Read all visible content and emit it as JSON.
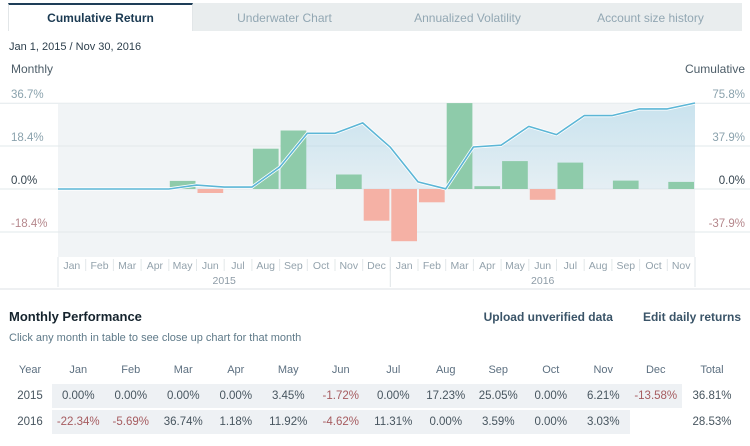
{
  "tabs": [
    {
      "label": "Cumulative Return",
      "active": true
    },
    {
      "label": "Underwater Chart",
      "active": false
    },
    {
      "label": "Annualized Volatility",
      "active": false
    },
    {
      "label": "Account size history",
      "active": false
    }
  ],
  "date_range": "Jan 1, 2015 / Nov 30, 2016",
  "chart_data": {
    "type": "bar+line",
    "x_groups": [
      {
        "year": "2015",
        "months": [
          "Jan",
          "Feb",
          "Mar",
          "Apr",
          "May",
          "Jun",
          "Jul",
          "Aug",
          "Sep",
          "Oct",
          "Nov",
          "Dec"
        ]
      },
      {
        "year": "2016",
        "months": [
          "Jan",
          "Feb",
          "Mar",
          "Apr",
          "May",
          "Jun",
          "Jul",
          "Aug",
          "Sep",
          "Oct",
          "Nov"
        ]
      }
    ],
    "series": [
      {
        "name": "Monthly",
        "type": "bar",
        "axis": "left",
        "values": [
          0,
          0,
          0,
          0,
          3.45,
          -1.72,
          0,
          17.23,
          25.05,
          0,
          6.21,
          -13.58,
          -22.34,
          -5.69,
          36.74,
          1.18,
          11.92,
          -4.62,
          11.31,
          0,
          3.59,
          0,
          3.03
        ]
      },
      {
        "name": "Cumulative",
        "type": "line",
        "axis": "right",
        "values": [
          0,
          0,
          0,
          0,
          3.45,
          1.67,
          1.67,
          19.19,
          49.05,
          49.05,
          58.3,
          36.81,
          6.24,
          0.2,
          37.01,
          38.63,
          55.15,
          47.98,
          64.72,
          64.72,
          70.63,
          70.63,
          75.81
        ]
      }
    ],
    "left_axis": {
      "label": "Monthly",
      "ticks": [
        36.7,
        18.4,
        0,
        -18.4
      ],
      "unit": "%"
    },
    "right_axis": {
      "label": "Cumulative",
      "ticks": [
        75.8,
        37.9,
        0,
        -37.9
      ],
      "unit": "%"
    },
    "grid": true,
    "colors": {
      "bar_positive": "#8ecbaa",
      "bar_negative": "#f5b1a5",
      "line": "#5cb6d6",
      "area": "#8cc8e2",
      "plot_background": "#f1f4f6",
      "tick_positive": "#8aa2ad",
      "tick_zero": "#35444f",
      "tick_negative": "#b5878c",
      "active_tab_accent": "#1e3e58"
    }
  },
  "table": {
    "title": "Monthly Performance",
    "actions": [
      {
        "label": "Upload unverified data"
      },
      {
        "label": "Edit daily returns"
      }
    ],
    "hint": "Click any month in table to see close up chart for that month",
    "columns": [
      "Year",
      "Jan",
      "Feb",
      "Mar",
      "Apr",
      "May",
      "Jun",
      "Jul",
      "Aug",
      "Sep",
      "Oct",
      "Nov",
      "Dec",
      "Total"
    ],
    "rows": [
      {
        "year": "2015",
        "values": [
          "0.00%",
          "0.00%",
          "0.00%",
          "0.00%",
          "3.45%",
          "-1.72%",
          "0.00%",
          "17.23%",
          "25.05%",
          "0.00%",
          "6.21%",
          "-13.58%"
        ],
        "total": "36.81%"
      },
      {
        "year": "2016",
        "values": [
          "-22.34%",
          "-5.69%",
          "36.74%",
          "1.18%",
          "11.92%",
          "-4.62%",
          "11.31%",
          "0.00%",
          "3.59%",
          "0.00%",
          "3.03%",
          ""
        ],
        "total": "28.53%"
      }
    ]
  }
}
